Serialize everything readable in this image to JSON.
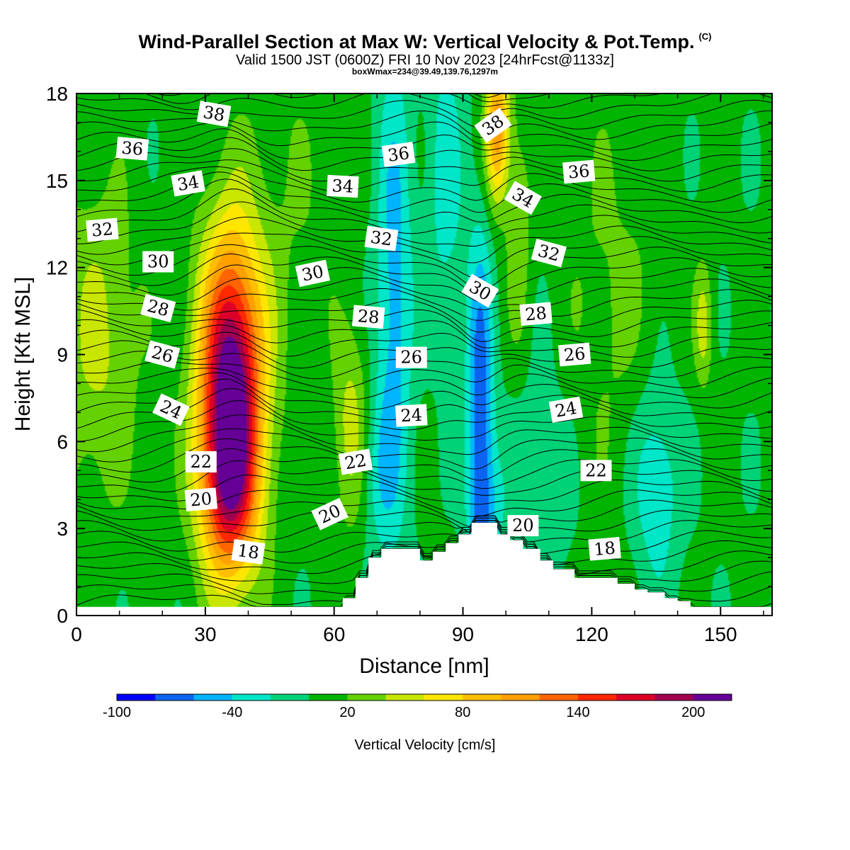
{
  "header": {
    "title": "Wind-Parallel Section at Max W: Vertical Velocity & Pot.Temp.",
    "copyright": "(C)",
    "subtitle": "Valid 1500 JST (0600Z) FRI 10 Nov 2023 [24hrFcst@1133z]",
    "info": "boxWmax=234@39.49,139.76,1297m"
  },
  "chart_data": {
    "type": "heatmap",
    "title": "Wind-Parallel Section at Max W: Vertical Velocity & Pot.Temp.",
    "xlabel": "Distance [nm]",
    "ylabel": "Height [Kft MSL]",
    "xlim": [
      0,
      162
    ],
    "ylim": [
      0,
      18
    ],
    "x_ticks": [
      0,
      30,
      60,
      90,
      120,
      150
    ],
    "y_ticks": [
      0,
      3,
      6,
      9,
      12,
      15,
      18
    ],
    "colorbar": {
      "label": "Vertical Velocity [cm/s]",
      "levels": [
        -100,
        -80,
        -60,
        -40,
        -20,
        0,
        20,
        40,
        60,
        80,
        100,
        120,
        140,
        160,
        180,
        200,
        220
      ],
      "tick_labels": [
        -100,
        -40,
        20,
        80,
        140,
        200
      ],
      "colors": [
        "#0000ff",
        "#0a64f0",
        "#00b4ff",
        "#00e6c8",
        "#00d278",
        "#00b400",
        "#64d200",
        "#c8e600",
        "#ffe600",
        "#ffbe00",
        "#ffa000",
        "#ff6400",
        "#ff2800",
        "#dc0028",
        "#a00050",
        "#640096"
      ]
    },
    "w_features": [
      {
        "name": "updraft",
        "x": 36,
        "y": 7.5,
        "peak": 210
      },
      {
        "name": "downdraft",
        "x": 94,
        "y": 6.5,
        "peak": -70
      },
      {
        "name": "upslope-ascent",
        "x": 98,
        "y": 16.5,
        "peak": 80
      },
      {
        "name": "weak-descent",
        "x": 75,
        "y": 11,
        "peak": -45
      }
    ],
    "terrain": {
      "x": [
        0,
        61,
        62,
        65,
        68,
        71,
        80,
        83,
        86,
        89,
        92,
        98,
        101,
        104,
        108,
        111,
        116,
        126,
        130,
        133,
        137,
        140,
        143,
        162
      ],
      "h": [
        0.3,
        0.3,
        0.6,
        1.3,
        2.0,
        2.3,
        1.9,
        2.2,
        2.5,
        2.8,
        3.2,
        2.8,
        2.6,
        2.3,
        1.9,
        1.6,
        1.3,
        1.1,
        0.9,
        0.8,
        0.6,
        0.5,
        0.3,
        0.3
      ]
    },
    "theta_labels": [
      {
        "text": "38",
        "x": 32,
        "y": 17.3
      },
      {
        "text": "36",
        "x": 13,
        "y": 16.1
      },
      {
        "text": "36",
        "x": 75,
        "y": 15.9
      },
      {
        "text": "38",
        "x": 97,
        "y": 16.9
      },
      {
        "text": "36",
        "x": 117,
        "y": 15.3
      },
      {
        "text": "34",
        "x": 26,
        "y": 14.9
      },
      {
        "text": "34",
        "x": 62,
        "y": 14.8
      },
      {
        "text": "34",
        "x": 104,
        "y": 14.4
      },
      {
        "text": "32",
        "x": 6,
        "y": 13.3
      },
      {
        "text": "32",
        "x": 71,
        "y": 13.0
      },
      {
        "text": "32",
        "x": 110,
        "y": 12.5
      },
      {
        "text": "30",
        "x": 19,
        "y": 12.2
      },
      {
        "text": "30",
        "x": 55,
        "y": 11.8
      },
      {
        "text": "30",
        "x": 94,
        "y": 11.2
      },
      {
        "text": "28",
        "x": 19,
        "y": 10.6
      },
      {
        "text": "28",
        "x": 68,
        "y": 10.3
      },
      {
        "text": "28",
        "x": 107,
        "y": 10.4
      },
      {
        "text": "26",
        "x": 20,
        "y": 9.0
      },
      {
        "text": "26",
        "x": 78,
        "y": 8.9
      },
      {
        "text": "26",
        "x": 116,
        "y": 9.0
      },
      {
        "text": "24",
        "x": 22,
        "y": 7.1
      },
      {
        "text": "24",
        "x": 78,
        "y": 6.9
      },
      {
        "text": "24",
        "x": 114,
        "y": 7.1
      },
      {
        "text": "22",
        "x": 29,
        "y": 5.3
      },
      {
        "text": "22",
        "x": 65,
        "y": 5.3
      },
      {
        "text": "22",
        "x": 121,
        "y": 5.0
      },
      {
        "text": "20",
        "x": 29,
        "y": 4.0
      },
      {
        "text": "20",
        "x": 59,
        "y": 3.5
      },
      {
        "text": "20",
        "x": 104,
        "y": 3.1
      },
      {
        "text": "18",
        "x": 40,
        "y": 2.2
      },
      {
        "text": "18",
        "x": 123,
        "y": 2.3
      }
    ]
  }
}
